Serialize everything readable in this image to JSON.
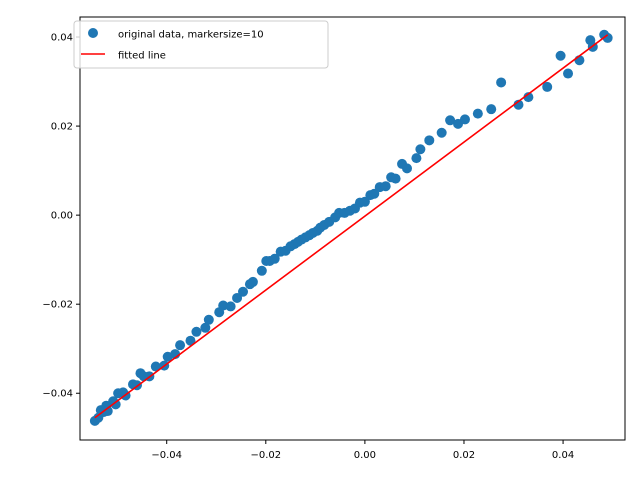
{
  "chart_data": {
    "type": "scatter",
    "title": "",
    "xlabel": "",
    "ylabel": "",
    "xlim": [
      -0.0575,
      0.0525
    ],
    "ylim": [
      -0.0505,
      0.0445
    ],
    "xticks": [
      -0.04,
      -0.02,
      0.0,
      0.02,
      0.04
    ],
    "xtick_labels": [
      "−0.04",
      "−0.02",
      "0.00",
      "0.02",
      "0.04"
    ],
    "yticks": [
      -0.04,
      -0.02,
      0.0,
      0.02,
      0.04
    ],
    "ytick_labels": [
      "−0.04",
      "−0.02",
      "0.00",
      "0.02",
      "0.04"
    ],
    "grid": false,
    "legend_position": "upper-left",
    "legend": [
      {
        "label": "original data, markersize=10",
        "marker": "circle",
        "color": "#1f77b4"
      },
      {
        "label": "fitted line",
        "marker": "line",
        "color": "#ff0000"
      }
    ],
    "series": [
      {
        "name": "original data, markersize=10",
        "kind": "scatter",
        "color": "#1f77b4",
        "points": [
          [
            -0.0545,
            -0.0462
          ],
          [
            -0.0538,
            -0.0455
          ],
          [
            -0.0533,
            -0.0438
          ],
          [
            -0.0527,
            -0.0442
          ],
          [
            -0.0522,
            -0.0428
          ],
          [
            -0.0519,
            -0.044
          ],
          [
            -0.0508,
            -0.0418
          ],
          [
            -0.0503,
            -0.0425
          ],
          [
            -0.0498,
            -0.04
          ],
          [
            -0.0488,
            -0.0398
          ],
          [
            -0.0483,
            -0.0405
          ],
          [
            -0.0468,
            -0.038
          ],
          [
            -0.046,
            -0.0382
          ],
          [
            -0.0453,
            -0.0355
          ],
          [
            -0.0446,
            -0.0362
          ],
          [
            -0.0435,
            -0.0362
          ],
          [
            -0.0422,
            -0.034
          ],
          [
            -0.0405,
            -0.0338
          ],
          [
            -0.0398,
            -0.0318
          ],
          [
            -0.0383,
            -0.0312
          ],
          [
            -0.0373,
            -0.0292
          ],
          [
            -0.0352,
            -0.0282
          ],
          [
            -0.034,
            -0.0262
          ],
          [
            -0.0322,
            -0.0253
          ],
          [
            -0.0315,
            -0.0235
          ],
          [
            -0.0294,
            -0.0218
          ],
          [
            -0.0286,
            -0.0203
          ],
          [
            -0.0271,
            -0.0205
          ],
          [
            -0.0258,
            -0.0186
          ],
          [
            -0.0246,
            -0.0172
          ],
          [
            -0.0232,
            -0.0155
          ],
          [
            -0.0226,
            -0.015
          ],
          [
            -0.0208,
            -0.0125
          ],
          [
            -0.0199,
            -0.0103
          ],
          [
            -0.0192,
            -0.0103
          ],
          [
            -0.0182,
            -0.0098
          ],
          [
            -0.017,
            -0.0082
          ],
          [
            -0.016,
            -0.008
          ],
          [
            -0.015,
            -0.007
          ],
          [
            -0.0142,
            -0.0065
          ],
          [
            -0.0135,
            -0.006
          ],
          [
            -0.0128,
            -0.0055
          ],
          [
            -0.012,
            -0.005
          ],
          [
            -0.0112,
            -0.0045
          ],
          [
            -0.0105,
            -0.004
          ],
          [
            -0.0096,
            -0.0035
          ],
          [
            -0.009,
            -0.0028
          ],
          [
            -0.0082,
            -0.0022
          ],
          [
            -0.0072,
            -0.0015
          ],
          [
            -0.006,
            -0.0005
          ],
          [
            -0.0052,
            0.0005
          ],
          [
            -0.0041,
            0.0005
          ],
          [
            -0.003,
            0.001
          ],
          [
            -0.002,
            0.0015
          ],
          [
            -0.001,
            0.0028
          ],
          [
            0.0,
            0.003
          ],
          [
            0.0011,
            0.0045
          ],
          [
            0.0019,
            0.0048
          ],
          [
            0.003,
            0.0063
          ],
          [
            0.0042,
            0.0065
          ],
          [
            0.0053,
            0.0085
          ],
          [
            0.0062,
            0.0082
          ],
          [
            0.0075,
            0.0115
          ],
          [
            0.0085,
            0.0105
          ],
          [
            0.0104,
            0.0128
          ],
          [
            0.0112,
            0.0148
          ],
          [
            0.013,
            0.0168
          ],
          [
            0.0155,
            0.0185
          ],
          [
            0.0172,
            0.0213
          ],
          [
            0.0188,
            0.0205
          ],
          [
            0.0202,
            0.0215
          ],
          [
            0.0228,
            0.0228
          ],
          [
            0.0255,
            0.0238
          ],
          [
            0.0275,
            0.0298
          ],
          [
            0.031,
            0.0248
          ],
          [
            0.033,
            0.0265
          ],
          [
            0.0368,
            0.0288
          ],
          [
            0.0395,
            0.0358
          ],
          [
            0.041,
            0.0318
          ],
          [
            0.0433,
            0.0348
          ],
          [
            0.0455,
            0.0393
          ],
          [
            0.046,
            0.0378
          ],
          [
            0.0483,
            0.0405
          ],
          [
            0.049,
            0.0398
          ]
        ]
      },
      {
        "name": "fitted line",
        "kind": "line",
        "color": "#ff0000",
        "points": [
          [
            -0.0545,
            -0.0455
          ],
          [
            0.049,
            0.0405
          ]
        ]
      }
    ]
  }
}
